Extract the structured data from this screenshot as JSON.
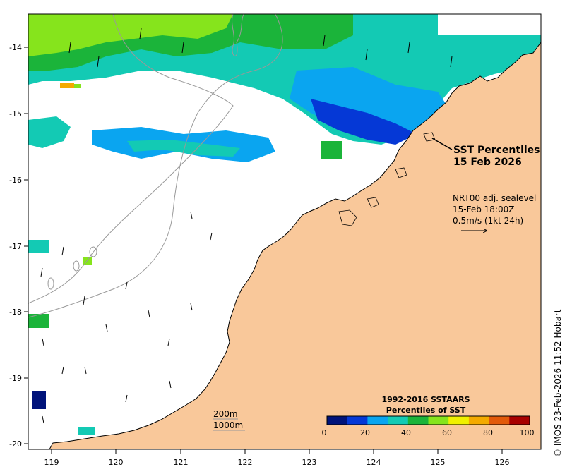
{
  "map": {
    "title_line1": "SST Percentiles",
    "title_line2": "15 Feb 2026",
    "current_label_line1": "NRT00 adj. sealevel",
    "current_label_line2": "15-Feb 18:00Z",
    "current_label_line3": "0.5m/s (1kt 24h)",
    "depth_label_1": "200m",
    "depth_label_2": "1000m",
    "credit": "© IMOS 23-Feb-2026 11:52 Hobart",
    "x_ticks": [
      "119",
      "120",
      "121",
      "122",
      "123",
      "124",
      "125",
      "126"
    ],
    "y_ticks": [
      "-14",
      "-15",
      "-16",
      "-17",
      "-18",
      "-19",
      "-20"
    ],
    "colors": {
      "land": "#f9c89a",
      "ocean_nodata": "#ffffff",
      "contour": "#999999"
    }
  },
  "legend": {
    "title_line1": "1992-2016 SSTAARS",
    "title_line2": "Percentiles of SST",
    "ticks": [
      "0",
      "20",
      "40",
      "60",
      "80",
      "100"
    ],
    "colors": [
      "#00137a",
      "#0538d6",
      "#0aa5f0",
      "#13cab4",
      "#1bb43a",
      "#86e41c",
      "#f0f000",
      "#f4aa00",
      "#e25a0a",
      "#a80000"
    ]
  }
}
